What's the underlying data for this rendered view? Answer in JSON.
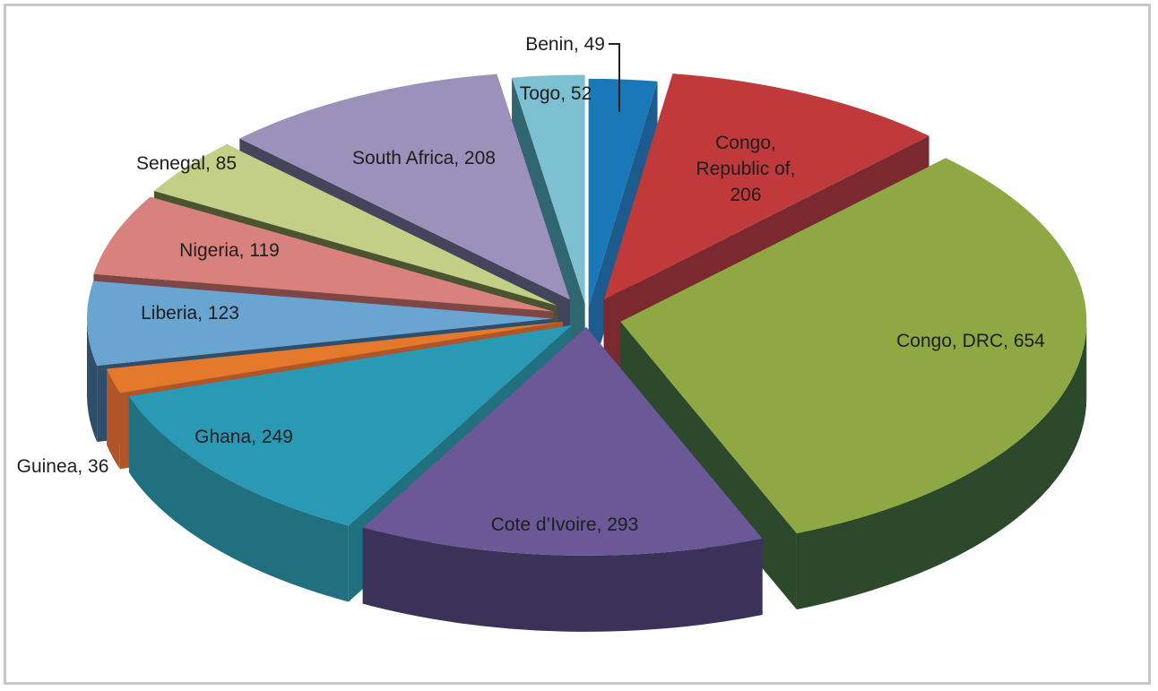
{
  "chart_data": {
    "type": "pie",
    "style": "3d-exploded",
    "labels": [
      "Benin, 49",
      "Congo, Republic of, 206",
      "Congo, DRC, 654",
      "Cote d’Ivoire, 293",
      "Ghana, 249",
      "Guinea, 36",
      "Liberia, 123",
      "Nigeria, 119",
      "Senegal, 85",
      "South Africa, 208",
      "Togo, 52"
    ],
    "series": [
      {
        "values": [
          49,
          206,
          654,
          293,
          249,
          36,
          123,
          119,
          85,
          208,
          52
        ]
      }
    ],
    "label_lines": [
      [
        "Benin, 49"
      ],
      [
        "Congo,",
        "Republic of,",
        "206"
      ],
      [
        "Congo, DRC, 654"
      ],
      [
        "Cote d’Ivoire, 293"
      ],
      [
        "Ghana, 249"
      ],
      [
        "Guinea, 36"
      ],
      [
        "Liberia, 123"
      ],
      [
        "Nigeria, 119"
      ],
      [
        "Senegal, 85"
      ],
      [
        "South Africa, 208"
      ],
      [
        "Togo, 52"
      ]
    ],
    "colors": [
      "#1a78b8",
      "#c0393b",
      "#8ea844",
      "#6b5897",
      "#2a9ab4",
      "#e5792b",
      "#6aa5d2",
      "#d9827d",
      "#c3cf86",
      "#9b91bb",
      "#7cc0d2"
    ],
    "side_colors": [
      "#1d5a8e",
      "#7a2a2e",
      "#2c4a2b",
      "#3c3158",
      "#21707f",
      "#b0552a",
      "#2f4e69",
      "#7c4744",
      "#4a5430",
      "#44445c",
      "#2f6670"
    ]
  }
}
